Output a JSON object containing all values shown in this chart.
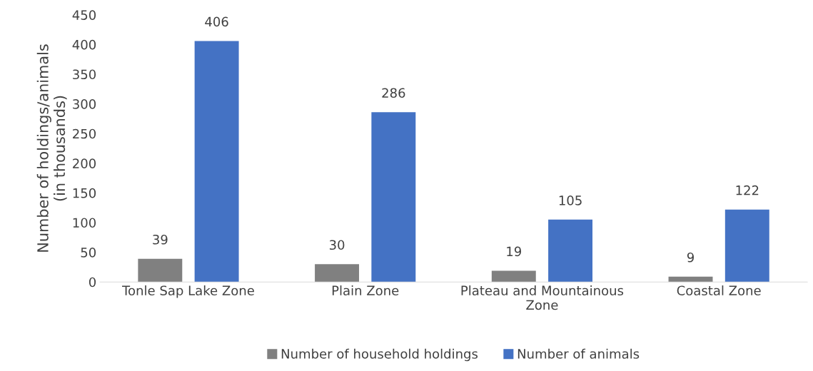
{
  "chart_data": {
    "type": "bar",
    "ylabel": "Number of holdings/animals (in thousands)",
    "categories": [
      "Tonle Sap Lake Zone",
      "Plain Zone",
      "Plateau and Mountainous Zone",
      "Coastal Zone"
    ],
    "series": [
      {
        "name": "Number of household holdings",
        "color": "#808080",
        "values": [
          39,
          30,
          19,
          9
        ]
      },
      {
        "name": "Number of animals",
        "color": "#4472c4",
        "values": [
          406,
          286,
          105,
          122
        ]
      }
    ],
    "ylim": [
      0,
      450
    ],
    "yticks": [
      0,
      50,
      100,
      150,
      200,
      250,
      300,
      350,
      400,
      450
    ],
    "grid": false,
    "legend": "bottom",
    "data_labels": true
  }
}
